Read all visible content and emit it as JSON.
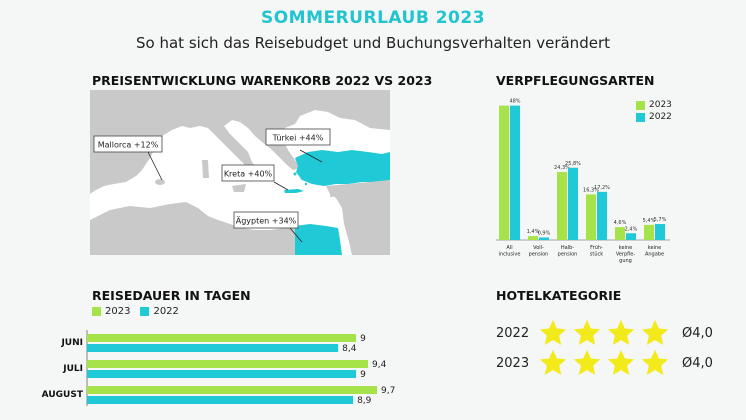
{
  "header": {
    "title": "SOMMERURLAUB 2023",
    "subtitle": "So hat sich das Reisebudget und Buchungsverhalten verändert"
  },
  "colors": {
    "y2023": "#a6e34a",
    "y2022": "#20c9d6",
    "land": "#c9c9c9",
    "highlight": "#20c9d6",
    "sea": "#ffffff"
  },
  "map": {
    "title": "PREISENTWICKLUNG WARENKORB 2022 VS 2023",
    "callouts": {
      "mallorca": "Mallorca +12%",
      "tuerkei": "Türkei +44%",
      "kreta": "Kreta +40%",
      "aegypten": "Ägypten +34%"
    }
  },
  "food": {
    "title": "VERPFLEGUNGSARTEN",
    "legend": [
      "2023",
      "2022"
    ]
  },
  "duration": {
    "title": "REISEDAUER IN TAGEN",
    "legend": [
      "2023",
      "2022"
    ]
  },
  "hotel": {
    "title": "HOTELKATEGORIE",
    "rows": [
      {
        "year": "2022",
        "stars": 4,
        "avg": "Ø4,0"
      },
      {
        "year": "2023",
        "stars": 4,
        "avg": "Ø4,0"
      }
    ],
    "star_color": "#f2ea1a"
  },
  "chart_data": [
    {
      "type": "bar",
      "title": "VERPFLEGUNGSARTEN",
      "categories": [
        "All inclusive",
        "Voll-pension",
        "Halb-pension",
        "Früh-stück",
        "keine Verpfle-gung",
        "keine Angabe"
      ],
      "series": [
        {
          "name": "2023",
          "values": [
            48,
            1.4,
            24.3,
            16.3,
            4.6,
            5.4
          ],
          "labels": [
            "",
            "1,4%",
            "24,3%",
            "16,3%",
            "4,6%",
            "5,4%"
          ]
        },
        {
          "name": "2022",
          "values": [
            48,
            0.9,
            25.8,
            17.2,
            2.4,
            5.7
          ],
          "labels": [
            "48%",
            "0,9%",
            "25,8%",
            "17,2%",
            "2,4%",
            "5,7%"
          ]
        }
      ],
      "category_labels": [
        [
          "All",
          "inclusive"
        ],
        [
          "Voll-",
          "pension"
        ],
        [
          "Halb-",
          "pension"
        ],
        [
          "Früh-",
          "stück"
        ],
        [
          "keine",
          "Verpfle-",
          "gung"
        ],
        [
          "keine",
          "Angabe"
        ]
      ],
      "ylim": [
        0,
        50
      ],
      "legend": "top-right"
    },
    {
      "type": "bar",
      "orientation": "horizontal",
      "title": "REISEDAUER IN TAGEN",
      "categories": [
        "JUNI",
        "JULI",
        "AUGUST"
      ],
      "series": [
        {
          "name": "2023",
          "values": [
            9,
            9.4,
            9.7
          ],
          "labels": [
            "9",
            "9,4",
            "9,7"
          ]
        },
        {
          "name": "2022",
          "values": [
            8.4,
            9,
            8.9
          ],
          "labels": [
            "8,4",
            "9",
            "8,9"
          ]
        }
      ],
      "xlim": [
        0,
        11
      ],
      "legend": "top-left"
    }
  ]
}
